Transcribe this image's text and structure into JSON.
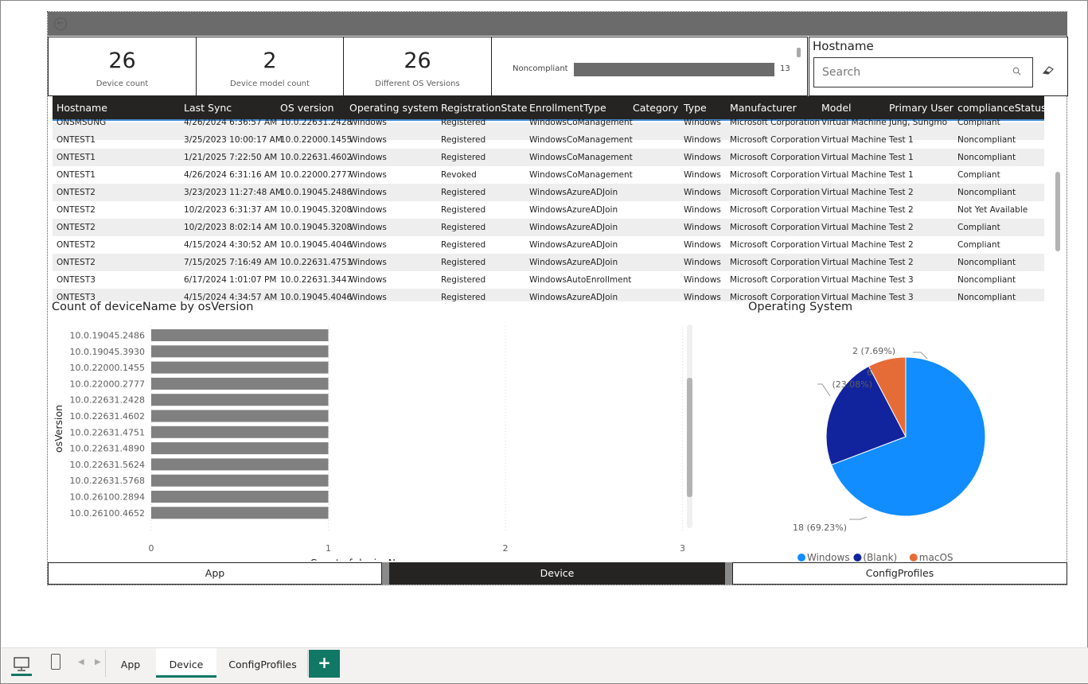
{
  "cards": [
    {
      "value": "26",
      "label": "Device count"
    },
    {
      "value": "2",
      "label": "Device model count"
    },
    {
      "value": "26",
      "label": "Different OS Versions"
    }
  ],
  "compliance_card": {
    "label": "Noncompliant",
    "value": "13"
  },
  "slicer": {
    "title": "Hostname",
    "placeholder": "Search"
  },
  "table": {
    "headers": [
      "Hostname",
      "Last Sync",
      "OS version",
      "Operating system",
      "RegistrationState",
      "EnrollmentType",
      "Category",
      "Type",
      "Manufacturer",
      "Model",
      "Primary User",
      "complianceStatus"
    ],
    "partial_row": [
      "ONSMSUNG",
      "4/26/2024 6:36:57 AM",
      "10.0.22631.2428",
      "Windows",
      "Registered",
      "WindowsCoManagement",
      "",
      "Windows",
      "Microsoft Corporation",
      "Virtual Machine",
      "Jung, Sungmo",
      "Compliant"
    ],
    "rows": [
      [
        "ONTEST1",
        "3/25/2023 10:00:17 AM",
        "10.0.22000.1455",
        "Windows",
        "Registered",
        "WindowsCoManagement",
        "",
        "Windows",
        "Microsoft Corporation",
        "Virtual Machine",
        "Test 1",
        "Noncompliant"
      ],
      [
        "ONTEST1",
        "1/21/2025 7:22:50 AM",
        "10.0.22631.4602",
        "Windows",
        "Registered",
        "WindowsCoManagement",
        "",
        "Windows",
        "Microsoft Corporation",
        "Virtual Machine",
        "Test 1",
        "Noncompliant"
      ],
      [
        "ONTEST1",
        "4/26/2024 6:31:16 AM",
        "10.0.22000.2777",
        "Windows",
        "Revoked",
        "WindowsCoManagement",
        "",
        "Windows",
        "Microsoft Corporation",
        "Virtual Machine",
        "Test 1",
        "Compliant"
      ],
      [
        "ONTEST2",
        "3/23/2023 11:27:48 AM",
        "10.0.19045.2486",
        "Windows",
        "Registered",
        "WindowsAzureADJoin",
        "",
        "Windows",
        "Microsoft Corporation",
        "Virtual Machine",
        "Test 2",
        "Noncompliant"
      ],
      [
        "ONTEST2",
        "10/2/2023 6:31:37 AM",
        "10.0.19045.3208",
        "Windows",
        "Registered",
        "WindowsAzureADJoin",
        "",
        "Windows",
        "Microsoft Corporation",
        "Virtual Machine",
        "Test 2",
        "Not Yet Available"
      ],
      [
        "ONTEST2",
        "10/2/2023 8:02:14 AM",
        "10.0.19045.3208",
        "Windows",
        "Registered",
        "WindowsAzureADJoin",
        "",
        "Windows",
        "Microsoft Corporation",
        "Virtual Machine",
        "Test 2",
        "Compliant"
      ],
      [
        "ONTEST2",
        "4/15/2024 4:30:52 AM",
        "10.0.19045.4046",
        "Windows",
        "Registered",
        "WindowsAzureADJoin",
        "",
        "Windows",
        "Microsoft Corporation",
        "Virtual Machine",
        "Test 2",
        "Compliant"
      ],
      [
        "ONTEST2",
        "7/15/2025 7:16:49 AM",
        "10.0.22631.4751",
        "Windows",
        "Registered",
        "WindowsAzureADJoin",
        "",
        "Windows",
        "Microsoft Corporation",
        "Virtual Machine",
        "Test 2",
        "Noncompliant"
      ],
      [
        "ONTEST3",
        "6/17/2024 1:01:07 PM",
        "10.0.22631.3447",
        "Windows",
        "Registered",
        "WindowsAutoEnrollment",
        "",
        "Windows",
        "Microsoft Corporation",
        "Virtual Machine",
        "Test 3",
        "Noncompliant"
      ],
      [
        "ONTEST3",
        "4/15/2024 4:34:57 AM",
        "10.0.19045.4046",
        "Windows",
        "Registered",
        "WindowsAzureADJoin",
        "",
        "Windows",
        "Microsoft Corporation",
        "Virtual Machine",
        "Test 3",
        "Noncompliant"
      ]
    ]
  },
  "chart_data": [
    {
      "type": "bar",
      "orientation": "horizontal",
      "title": "Count of deviceName by osVersion",
      "xlabel": "Count of deviceName",
      "ylabel": "osVersion",
      "categories": [
        "10.0.19045.2486",
        "10.0.19045.3930",
        "10.0.22000.1455",
        "10.0.22000.2777",
        "10.0.22631.2428",
        "10.0.22631.4602",
        "10.0.22631.4751",
        "10.0.22631.4890",
        "10.0.22631.5624",
        "10.0.22631.5768",
        "10.0.26100.2894",
        "10.0.26100.4652"
      ],
      "values": [
        1,
        1,
        1,
        1,
        1,
        1,
        1,
        1,
        1,
        1,
        1,
        1
      ],
      "xlim": [
        0,
        3
      ],
      "xticks": [
        "0",
        "1",
        "2",
        "3"
      ],
      "bar_color": "#808080",
      "grid": true
    },
    {
      "type": "pie",
      "title": "Operating System",
      "slices": [
        {
          "name": "Windows",
          "value": 18,
          "label": "18 (69.23%)",
          "color": "#118dff"
        },
        {
          "name": "(Blank)",
          "value": 6,
          "label_line1": "6",
          "label_line2": "(23.08%)",
          "color": "#12239e"
        },
        {
          "name": "macOS",
          "value": 2,
          "label": "2 (7.69%)",
          "color": "#e66c37"
        }
      ],
      "legend": "bottom"
    }
  ],
  "nav_buttons": [
    "App",
    "Device",
    "ConfigProfiles"
  ],
  "page_tabs": [
    "App",
    "Device",
    "ConfigProfiles"
  ],
  "add_tab_label": "+"
}
